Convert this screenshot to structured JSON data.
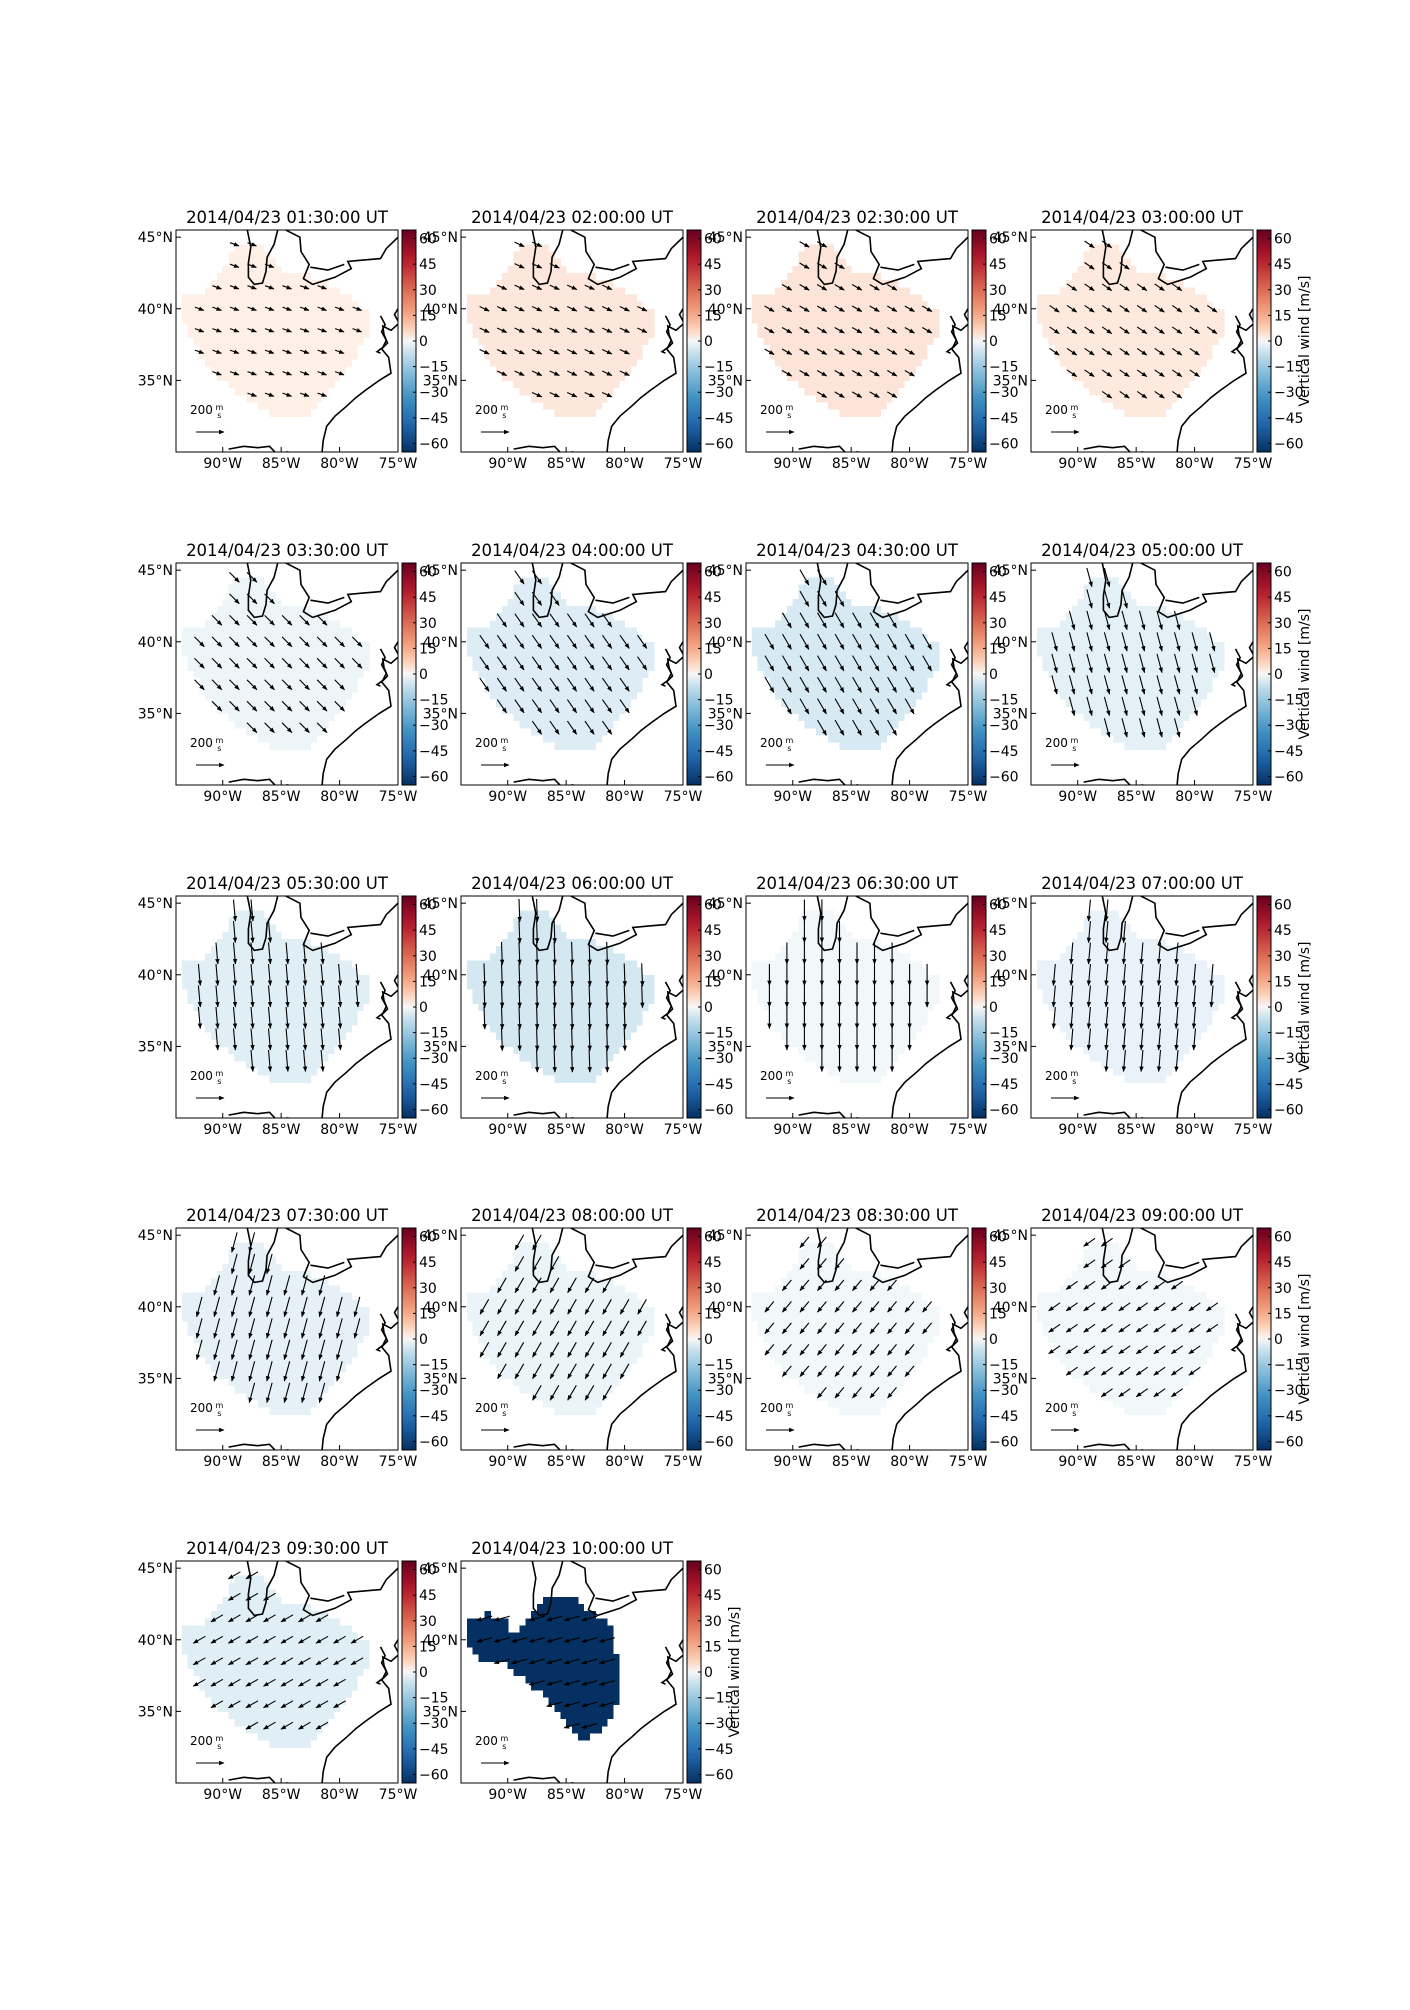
{
  "figure": {
    "colorbar_label": "Vertical wind [m/s]",
    "colorbar_ticks": [
      "60",
      "45",
      "30",
      "15",
      "0",
      "−15",
      "−30",
      "−45",
      "−60"
    ],
    "colorbar_tick_values": [
      60,
      45,
      30,
      15,
      0,
      -15,
      -30,
      -45,
      -60
    ],
    "colorbar_range": [
      -65,
      65
    ],
    "colormap": "RdBu_r",
    "lon_ticks": [
      "90°W",
      "85°W",
      "80°W",
      "75°W"
    ],
    "lon_tick_values": [
      -90,
      -85,
      -80,
      -75
    ],
    "lat_ticks": [
      "45°N",
      "40°N",
      "35°N"
    ],
    "lat_tick_values": [
      45,
      40,
      35
    ],
    "lon_range": [
      -94,
      -75
    ],
    "lat_range": [
      30,
      45.5
    ],
    "scale_label_value": "200",
    "scale_label_unit_num": "m",
    "scale_label_unit_den": "s",
    "layout": {
      "columns": 4,
      "rows": 5
    }
  },
  "panels": [
    {
      "title": "2014/04/23 01:30:00 UT",
      "vertical_wind": 5,
      "wind_dir_deg": 110,
      "wind_len": 0.25,
      "colorbar_label_shown": false
    },
    {
      "title": "2014/04/23 02:00:00 UT",
      "vertical_wind": 9,
      "wind_dir_deg": 115,
      "wind_len": 0.3,
      "colorbar_label_shown": false
    },
    {
      "title": "2014/04/23 02:30:00 UT",
      "vertical_wind": 10,
      "wind_dir_deg": 120,
      "wind_len": 0.32,
      "colorbar_label_shown": false
    },
    {
      "title": "2014/04/23 03:00:00 UT",
      "vertical_wind": 8,
      "wind_dir_deg": 125,
      "wind_len": 0.35,
      "colorbar_label_shown": true
    },
    {
      "title": "2014/04/23 03:30:00 UT",
      "vertical_wind": -4,
      "wind_dir_deg": 135,
      "wind_len": 0.45,
      "colorbar_label_shown": false
    },
    {
      "title": "2014/04/23 04:00:00 UT",
      "vertical_wind": -10,
      "wind_dir_deg": 145,
      "wind_len": 0.55,
      "colorbar_label_shown": false
    },
    {
      "title": "2014/04/23 04:30:00 UT",
      "vertical_wind": -13,
      "wind_dir_deg": 150,
      "wind_len": 0.62,
      "colorbar_label_shown": false
    },
    {
      "title": "2014/04/23 05:00:00 UT",
      "vertical_wind": -8,
      "wind_dir_deg": 165,
      "wind_len": 0.7,
      "colorbar_label_shown": true
    },
    {
      "title": "2014/04/23 05:30:00 UT",
      "vertical_wind": -9,
      "wind_dir_deg": 175,
      "wind_len": 0.8,
      "colorbar_label_shown": false
    },
    {
      "title": "2014/04/23 06:00:00 UT",
      "vertical_wind": -14,
      "wind_dir_deg": 178,
      "wind_len": 0.85,
      "colorbar_label_shown": false
    },
    {
      "title": "2014/04/23 06:30:00 UT",
      "vertical_wind": -3,
      "wind_dir_deg": 180,
      "wind_len": 0.8,
      "colorbar_label_shown": false
    },
    {
      "title": "2014/04/23 07:00:00 UT",
      "vertical_wind": -6,
      "wind_dir_deg": 185,
      "wind_len": 0.8,
      "colorbar_label_shown": true
    },
    {
      "title": "2014/04/23 07:30:00 UT",
      "vertical_wind": -7,
      "wind_dir_deg": 195,
      "wind_len": 0.75,
      "colorbar_label_shown": false
    },
    {
      "title": "2014/04/23 08:00:00 UT",
      "vertical_wind": -5,
      "wind_dir_deg": 210,
      "wind_len": 0.6,
      "colorbar_label_shown": false
    },
    {
      "title": "2014/04/23 08:30:00 UT",
      "vertical_wind": -3,
      "wind_dir_deg": 220,
      "wind_len": 0.45,
      "colorbar_label_shown": false
    },
    {
      "title": "2014/04/23 09:00:00 UT",
      "vertical_wind": -3,
      "wind_dir_deg": 235,
      "wind_len": 0.45,
      "colorbar_label_shown": true
    },
    {
      "title": "2014/04/23 09:30:00 UT",
      "vertical_wind": -9,
      "wind_dir_deg": 240,
      "wind_len": 0.45,
      "colorbar_label_shown": false
    },
    {
      "title": "2014/04/23 10:00:00 UT",
      "vertical_wind": -65,
      "wind_dir_deg": 255,
      "wind_len": 0.55,
      "colorbar_label_shown": true
    }
  ]
}
